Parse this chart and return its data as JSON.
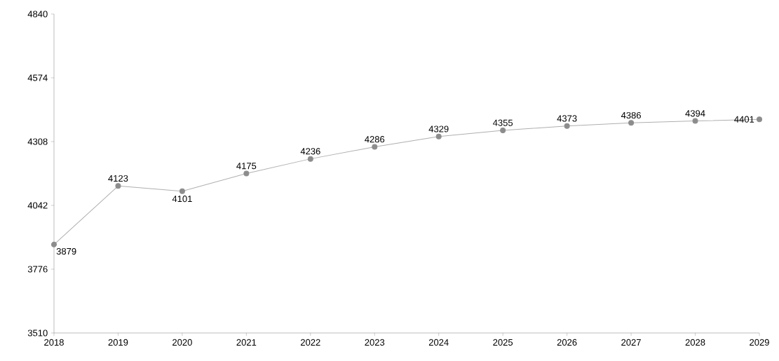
{
  "chart_data": {
    "type": "line",
    "x": [
      2018,
      2019,
      2020,
      2021,
      2022,
      2023,
      2024,
      2025,
      2026,
      2027,
      2028,
      2029
    ],
    "series": [
      {
        "color": "#8c8c8c",
        "values": [
          3879,
          4123,
          4101,
          4175,
          4236,
          4286,
          4329,
          4355,
          4373,
          4386,
          4394,
          4401
        ]
      }
    ],
    "xlim": [
      2018,
      2029
    ],
    "xticks": [
      2018,
      2019,
      2020,
      2021,
      2022,
      2023,
      2024,
      2025,
      2026,
      2027,
      2028,
      2029
    ],
    "ylim": [
      3510,
      4840
    ],
    "yticks": [
      3510,
      3776,
      4042,
      4308,
      4574,
      4840
    ],
    "marker": "circle",
    "line_style": "solid",
    "grid": false,
    "data_labels": true
  }
}
